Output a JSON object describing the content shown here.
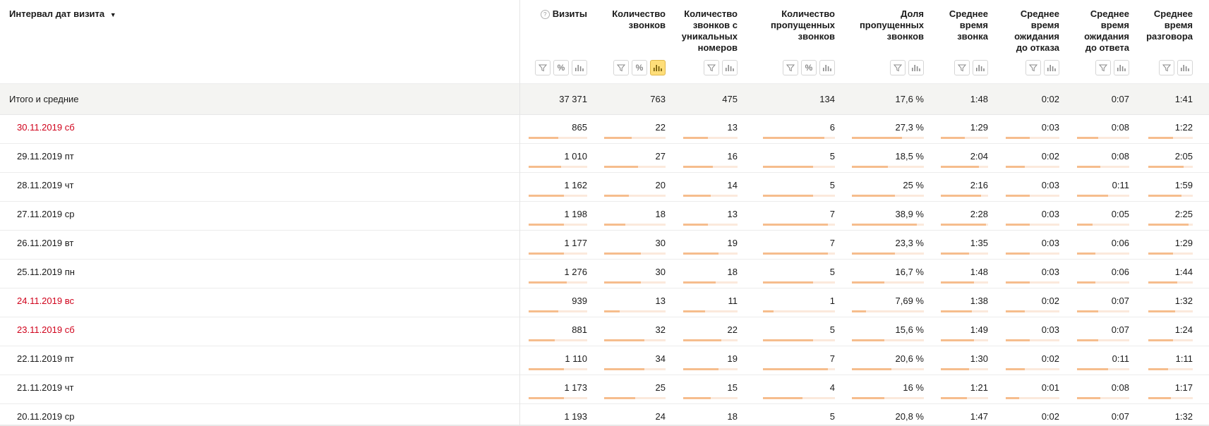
{
  "grouping": {
    "label": "Интервал дат визита",
    "arrow": "▼"
  },
  "columns": [
    {
      "id": "visits",
      "lines": [
        "Визиты"
      ],
      "help": "?",
      "buttons": [
        "filter",
        "percent",
        "chart"
      ],
      "active": ""
    },
    {
      "id": "calls",
      "lines": [
        "Количество",
        "звонков"
      ],
      "buttons": [
        "filter",
        "percent",
        "chart"
      ],
      "active": "chart"
    },
    {
      "id": "unique",
      "lines": [
        "Количество",
        "звонков с",
        "уникальных",
        "номеров"
      ],
      "buttons": [
        "filter",
        "chart"
      ],
      "active": ""
    },
    {
      "id": "missed",
      "lines": [
        "Количество",
        "пропущенных",
        "звонков"
      ],
      "buttons": [
        "filter",
        "percent",
        "chart"
      ],
      "active": ""
    },
    {
      "id": "missed_share",
      "lines": [
        "Доля",
        "пропущенных",
        "звонков"
      ],
      "buttons": [
        "filter",
        "chart"
      ],
      "active": ""
    },
    {
      "id": "avg_call",
      "lines": [
        "Среднее",
        "время",
        "звонка"
      ],
      "buttons": [
        "filter",
        "chart"
      ],
      "active": ""
    },
    {
      "id": "avg_wait_refusal",
      "lines": [
        "Среднее",
        "время",
        "ожидания",
        "до отказа"
      ],
      "buttons": [
        "filter",
        "chart"
      ],
      "active": ""
    },
    {
      "id": "avg_wait_answer",
      "lines": [
        "Среднее",
        "время",
        "ожидания",
        "до ответа"
      ],
      "buttons": [
        "filter",
        "chart"
      ],
      "active": ""
    },
    {
      "id": "avg_talk",
      "lines": [
        "Среднее",
        "время",
        "разговора"
      ],
      "buttons": [
        "filter",
        "chart"
      ],
      "active": ""
    }
  ],
  "totals": {
    "label": "Итого и средние",
    "values": [
      "37 371",
      "763",
      "475",
      "134",
      "17,6 %",
      "1:48",
      "0:02",
      "0:07",
      "1:41"
    ]
  },
  "rows": [
    {
      "label": "30.11.2019 сб",
      "weekend": true,
      "values": [
        "865",
        "22",
        "13",
        "6",
        "27,3 %",
        "1:29",
        "0:03",
        "0:08",
        "1:22"
      ],
      "fill": [
        0.5,
        0.45,
        0.45,
        0.85,
        0.7,
        0.5,
        0.45,
        0.4,
        0.55
      ]
    },
    {
      "label": "29.11.2019 пт",
      "weekend": false,
      "values": [
        "1 010",
        "27",
        "16",
        "5",
        "18,5 %",
        "2:04",
        "0:02",
        "0:08",
        "2:05"
      ],
      "fill": [
        0.55,
        0.55,
        0.55,
        0.7,
        0.5,
        0.8,
        0.35,
        0.45,
        0.8
      ]
    },
    {
      "label": "28.11.2019 чт",
      "weekend": false,
      "values": [
        "1 162",
        "20",
        "14",
        "5",
        "25 %",
        "2:16",
        "0:03",
        "0:11",
        "1:59"
      ],
      "fill": [
        0.6,
        0.4,
        0.5,
        0.7,
        0.6,
        0.85,
        0.45,
        0.6,
        0.75
      ]
    },
    {
      "label": "27.11.2019 ср",
      "weekend": false,
      "values": [
        "1 198",
        "18",
        "13",
        "7",
        "38,9 %",
        "2:28",
        "0:03",
        "0:05",
        "2:25"
      ],
      "fill": [
        0.6,
        0.35,
        0.45,
        0.9,
        0.9,
        0.95,
        0.45,
        0.3,
        0.9
      ]
    },
    {
      "label": "26.11.2019 вт",
      "weekend": false,
      "values": [
        "1 177",
        "30",
        "19",
        "7",
        "23,3 %",
        "1:35",
        "0:03",
        "0:06",
        "1:29"
      ],
      "fill": [
        0.6,
        0.6,
        0.65,
        0.9,
        0.6,
        0.6,
        0.45,
        0.35,
        0.55
      ]
    },
    {
      "label": "25.11.2019 пн",
      "weekend": false,
      "values": [
        "1 276",
        "30",
        "18",
        "5",
        "16,7 %",
        "1:48",
        "0:03",
        "0:06",
        "1:44"
      ],
      "fill": [
        0.65,
        0.6,
        0.6,
        0.7,
        0.45,
        0.7,
        0.45,
        0.35,
        0.65
      ]
    },
    {
      "label": "24.11.2019 вс",
      "weekend": true,
      "values": [
        "939",
        "13",
        "11",
        "1",
        "7,69 %",
        "1:38",
        "0:02",
        "0:07",
        "1:32"
      ],
      "fill": [
        0.5,
        0.25,
        0.4,
        0.15,
        0.2,
        0.65,
        0.35,
        0.4,
        0.6
      ]
    },
    {
      "label": "23.11.2019 сб",
      "weekend": true,
      "values": [
        "881",
        "32",
        "22",
        "5",
        "15,6 %",
        "1:49",
        "0:03",
        "0:07",
        "1:24"
      ],
      "fill": [
        0.45,
        0.65,
        0.7,
        0.7,
        0.45,
        0.7,
        0.45,
        0.4,
        0.55
      ]
    },
    {
      "label": "22.11.2019 пт",
      "weekend": false,
      "values": [
        "1 110",
        "34",
        "19",
        "7",
        "20,6 %",
        "1:30",
        "0:02",
        "0:11",
        "1:11"
      ],
      "fill": [
        0.6,
        0.65,
        0.65,
        0.9,
        0.55,
        0.6,
        0.35,
        0.6,
        0.45
      ]
    },
    {
      "label": "21.11.2019 чт",
      "weekend": false,
      "values": [
        "1 173",
        "25",
        "15",
        "4",
        "16 %",
        "1:21",
        "0:01",
        "0:08",
        "1:17"
      ],
      "fill": [
        0.6,
        0.5,
        0.5,
        0.55,
        0.45,
        0.55,
        0.25,
        0.45,
        0.5
      ]
    },
    {
      "label": "20.11.2019 ср",
      "weekend": false,
      "values": [
        "1 193",
        "24",
        "18",
        "5",
        "20,8 %",
        "1:47",
        "0:02",
        "0:07",
        "1:32"
      ],
      "fill": [
        0.6,
        0.5,
        0.6,
        0.7,
        0.55,
        0.7,
        0.35,
        0.4,
        0.6
      ]
    }
  ]
}
